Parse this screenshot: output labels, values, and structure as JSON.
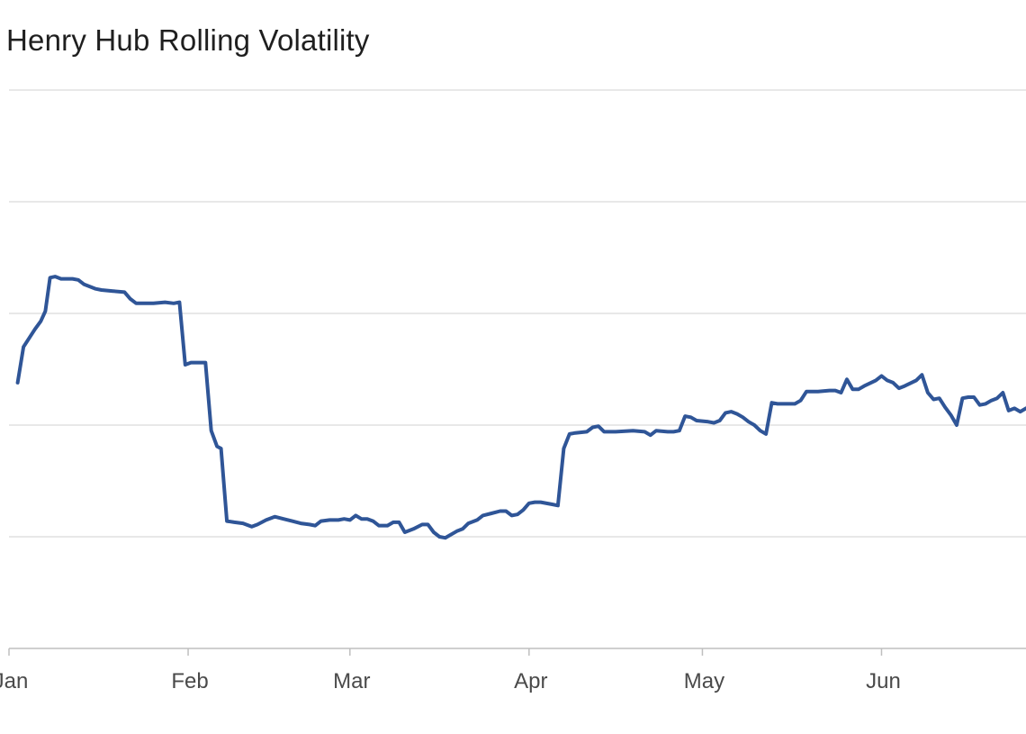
{
  "chart_data": {
    "type": "line",
    "title": "Henry Hub Rolling Volatility",
    "xlabel": "",
    "ylabel": "",
    "x_ticks": [
      {
        "label": "Jan",
        "day": 0
      },
      {
        "label": "Feb",
        "day": 31
      },
      {
        "label": "Mar",
        "day": 59
      },
      {
        "label": "Apr",
        "day": 90
      },
      {
        "label": "May",
        "day": 120
      },
      {
        "label": "Jun",
        "day": 151
      }
    ],
    "xlim": [
      0,
      176
    ],
    "ylim": [
      0,
      5
    ],
    "y_gridlines": [
      1,
      2,
      3,
      4,
      5
    ],
    "y_tick_labels_visible": false,
    "grid": true,
    "legend": "none",
    "colors": {
      "line": "#2f5597",
      "grid": "#d9d9d9",
      "axis": "#bfbfbf"
    },
    "series": [
      {
        "points": [
          [
            1.5,
            2.38
          ],
          [
            2.5,
            2.7
          ],
          [
            3.5,
            2.78
          ],
          [
            4.5,
            2.86
          ],
          [
            5.5,
            2.93
          ],
          [
            6.3,
            3.02
          ],
          [
            7.1,
            3.32
          ],
          [
            8,
            3.33
          ],
          [
            9,
            3.31
          ],
          [
            10,
            3.31
          ],
          [
            11,
            3.31
          ],
          [
            12,
            3.3
          ],
          [
            13,
            3.26
          ],
          [
            14,
            3.24
          ],
          [
            15,
            3.22
          ],
          [
            16,
            3.21
          ],
          [
            18,
            3.2
          ],
          [
            20,
            3.19
          ],
          [
            21,
            3.13
          ],
          [
            22,
            3.09
          ],
          [
            23,
            3.09
          ],
          [
            25,
            3.09
          ],
          [
            27,
            3.1
          ],
          [
            28.5,
            3.09
          ],
          [
            29.5,
            3.1
          ],
          [
            30.5,
            2.54
          ],
          [
            31.5,
            2.56
          ],
          [
            33,
            2.56
          ],
          [
            34,
            2.56
          ],
          [
            35,
            1.95
          ],
          [
            36,
            1.81
          ],
          [
            36.7,
            1.79
          ],
          [
            37.7,
            1.14
          ],
          [
            39,
            1.13
          ],
          [
            40.5,
            1.12
          ],
          [
            42,
            1.09
          ],
          [
            43,
            1.11
          ],
          [
            44.5,
            1.15
          ],
          [
            46,
            1.18
          ],
          [
            47.5,
            1.16
          ],
          [
            49,
            1.14
          ],
          [
            50.5,
            1.12
          ],
          [
            52,
            1.11
          ],
          [
            53,
            1.1
          ],
          [
            54,
            1.14
          ],
          [
            55.5,
            1.15
          ],
          [
            57,
            1.15
          ],
          [
            58,
            1.16
          ],
          [
            59,
            1.15
          ],
          [
            60,
            1.19
          ],
          [
            61,
            1.16
          ],
          [
            62,
            1.16
          ],
          [
            63,
            1.14
          ],
          [
            64,
            1.1
          ],
          [
            65.5,
            1.1
          ],
          [
            66.5,
            1.13
          ],
          [
            67.5,
            1.13
          ],
          [
            68.5,
            1.04
          ],
          [
            70,
            1.07
          ],
          [
            71.5,
            1.11
          ],
          [
            72.5,
            1.11
          ],
          [
            73.5,
            1.04
          ],
          [
            74.5,
            1.0
          ],
          [
            75.5,
            0.99
          ],
          [
            76.5,
            1.02
          ],
          [
            77.5,
            1.05
          ],
          [
            78.5,
            1.07
          ],
          [
            79.5,
            1.12
          ],
          [
            81,
            1.15
          ],
          [
            82,
            1.19
          ],
          [
            83.5,
            1.21
          ],
          [
            85,
            1.23
          ],
          [
            86,
            1.23
          ],
          [
            87,
            1.19
          ],
          [
            88,
            1.2
          ],
          [
            89,
            1.24
          ],
          [
            90,
            1.3
          ],
          [
            91,
            1.31
          ],
          [
            92,
            1.31
          ],
          [
            94,
            1.29
          ],
          [
            95,
            1.28
          ],
          [
            96,
            1.79
          ],
          [
            97,
            1.92
          ],
          [
            98,
            1.93
          ],
          [
            100,
            1.94
          ],
          [
            101,
            1.98
          ],
          [
            102,
            1.99
          ],
          [
            103,
            1.94
          ],
          [
            105,
            1.94
          ],
          [
            108,
            1.95
          ],
          [
            110,
            1.94
          ],
          [
            111,
            1.91
          ],
          [
            112,
            1.95
          ],
          [
            114,
            1.94
          ],
          [
            115,
            1.94
          ],
          [
            116,
            1.95
          ],
          [
            117,
            2.08
          ],
          [
            118,
            2.07
          ],
          [
            119,
            2.04
          ],
          [
            121,
            2.03
          ],
          [
            122,
            2.02
          ],
          [
            123,
            2.04
          ],
          [
            124,
            2.11
          ],
          [
            125,
            2.12
          ],
          [
            126,
            2.1
          ],
          [
            127,
            2.07
          ],
          [
            128,
            2.03
          ],
          [
            129,
            2.0
          ],
          [
            130,
            1.95
          ],
          [
            131,
            1.92
          ],
          [
            132,
            2.2
          ],
          [
            133,
            2.19
          ],
          [
            134,
            2.19
          ],
          [
            136,
            2.19
          ],
          [
            137,
            2.22
          ],
          [
            138,
            2.3
          ],
          [
            139,
            2.3
          ],
          [
            140,
            2.3
          ],
          [
            142,
            2.31
          ],
          [
            143,
            2.31
          ],
          [
            144,
            2.29
          ],
          [
            145,
            2.41
          ],
          [
            146,
            2.32
          ],
          [
            147,
            2.32
          ],
          [
            148,
            2.35
          ],
          [
            150,
            2.4
          ],
          [
            151,
            2.44
          ],
          [
            152,
            2.4
          ],
          [
            153,
            2.38
          ],
          [
            154,
            2.33
          ],
          [
            155,
            2.35
          ],
          [
            157,
            2.4
          ],
          [
            158,
            2.45
          ],
          [
            159,
            2.29
          ],
          [
            160,
            2.23
          ],
          [
            161,
            2.24
          ],
          [
            162,
            2.16
          ],
          [
            163,
            2.09
          ],
          [
            164,
            2.0
          ],
          [
            165,
            2.24
          ],
          [
            166,
            2.25
          ],
          [
            167,
            2.25
          ],
          [
            168,
            2.18
          ],
          [
            169,
            2.19
          ],
          [
            170,
            2.22
          ],
          [
            171,
            2.24
          ],
          [
            172,
            2.29
          ],
          [
            173,
            2.13
          ],
          [
            174,
            2.15
          ],
          [
            175,
            2.12
          ],
          [
            176,
            2.15
          ]
        ]
      }
    ]
  }
}
